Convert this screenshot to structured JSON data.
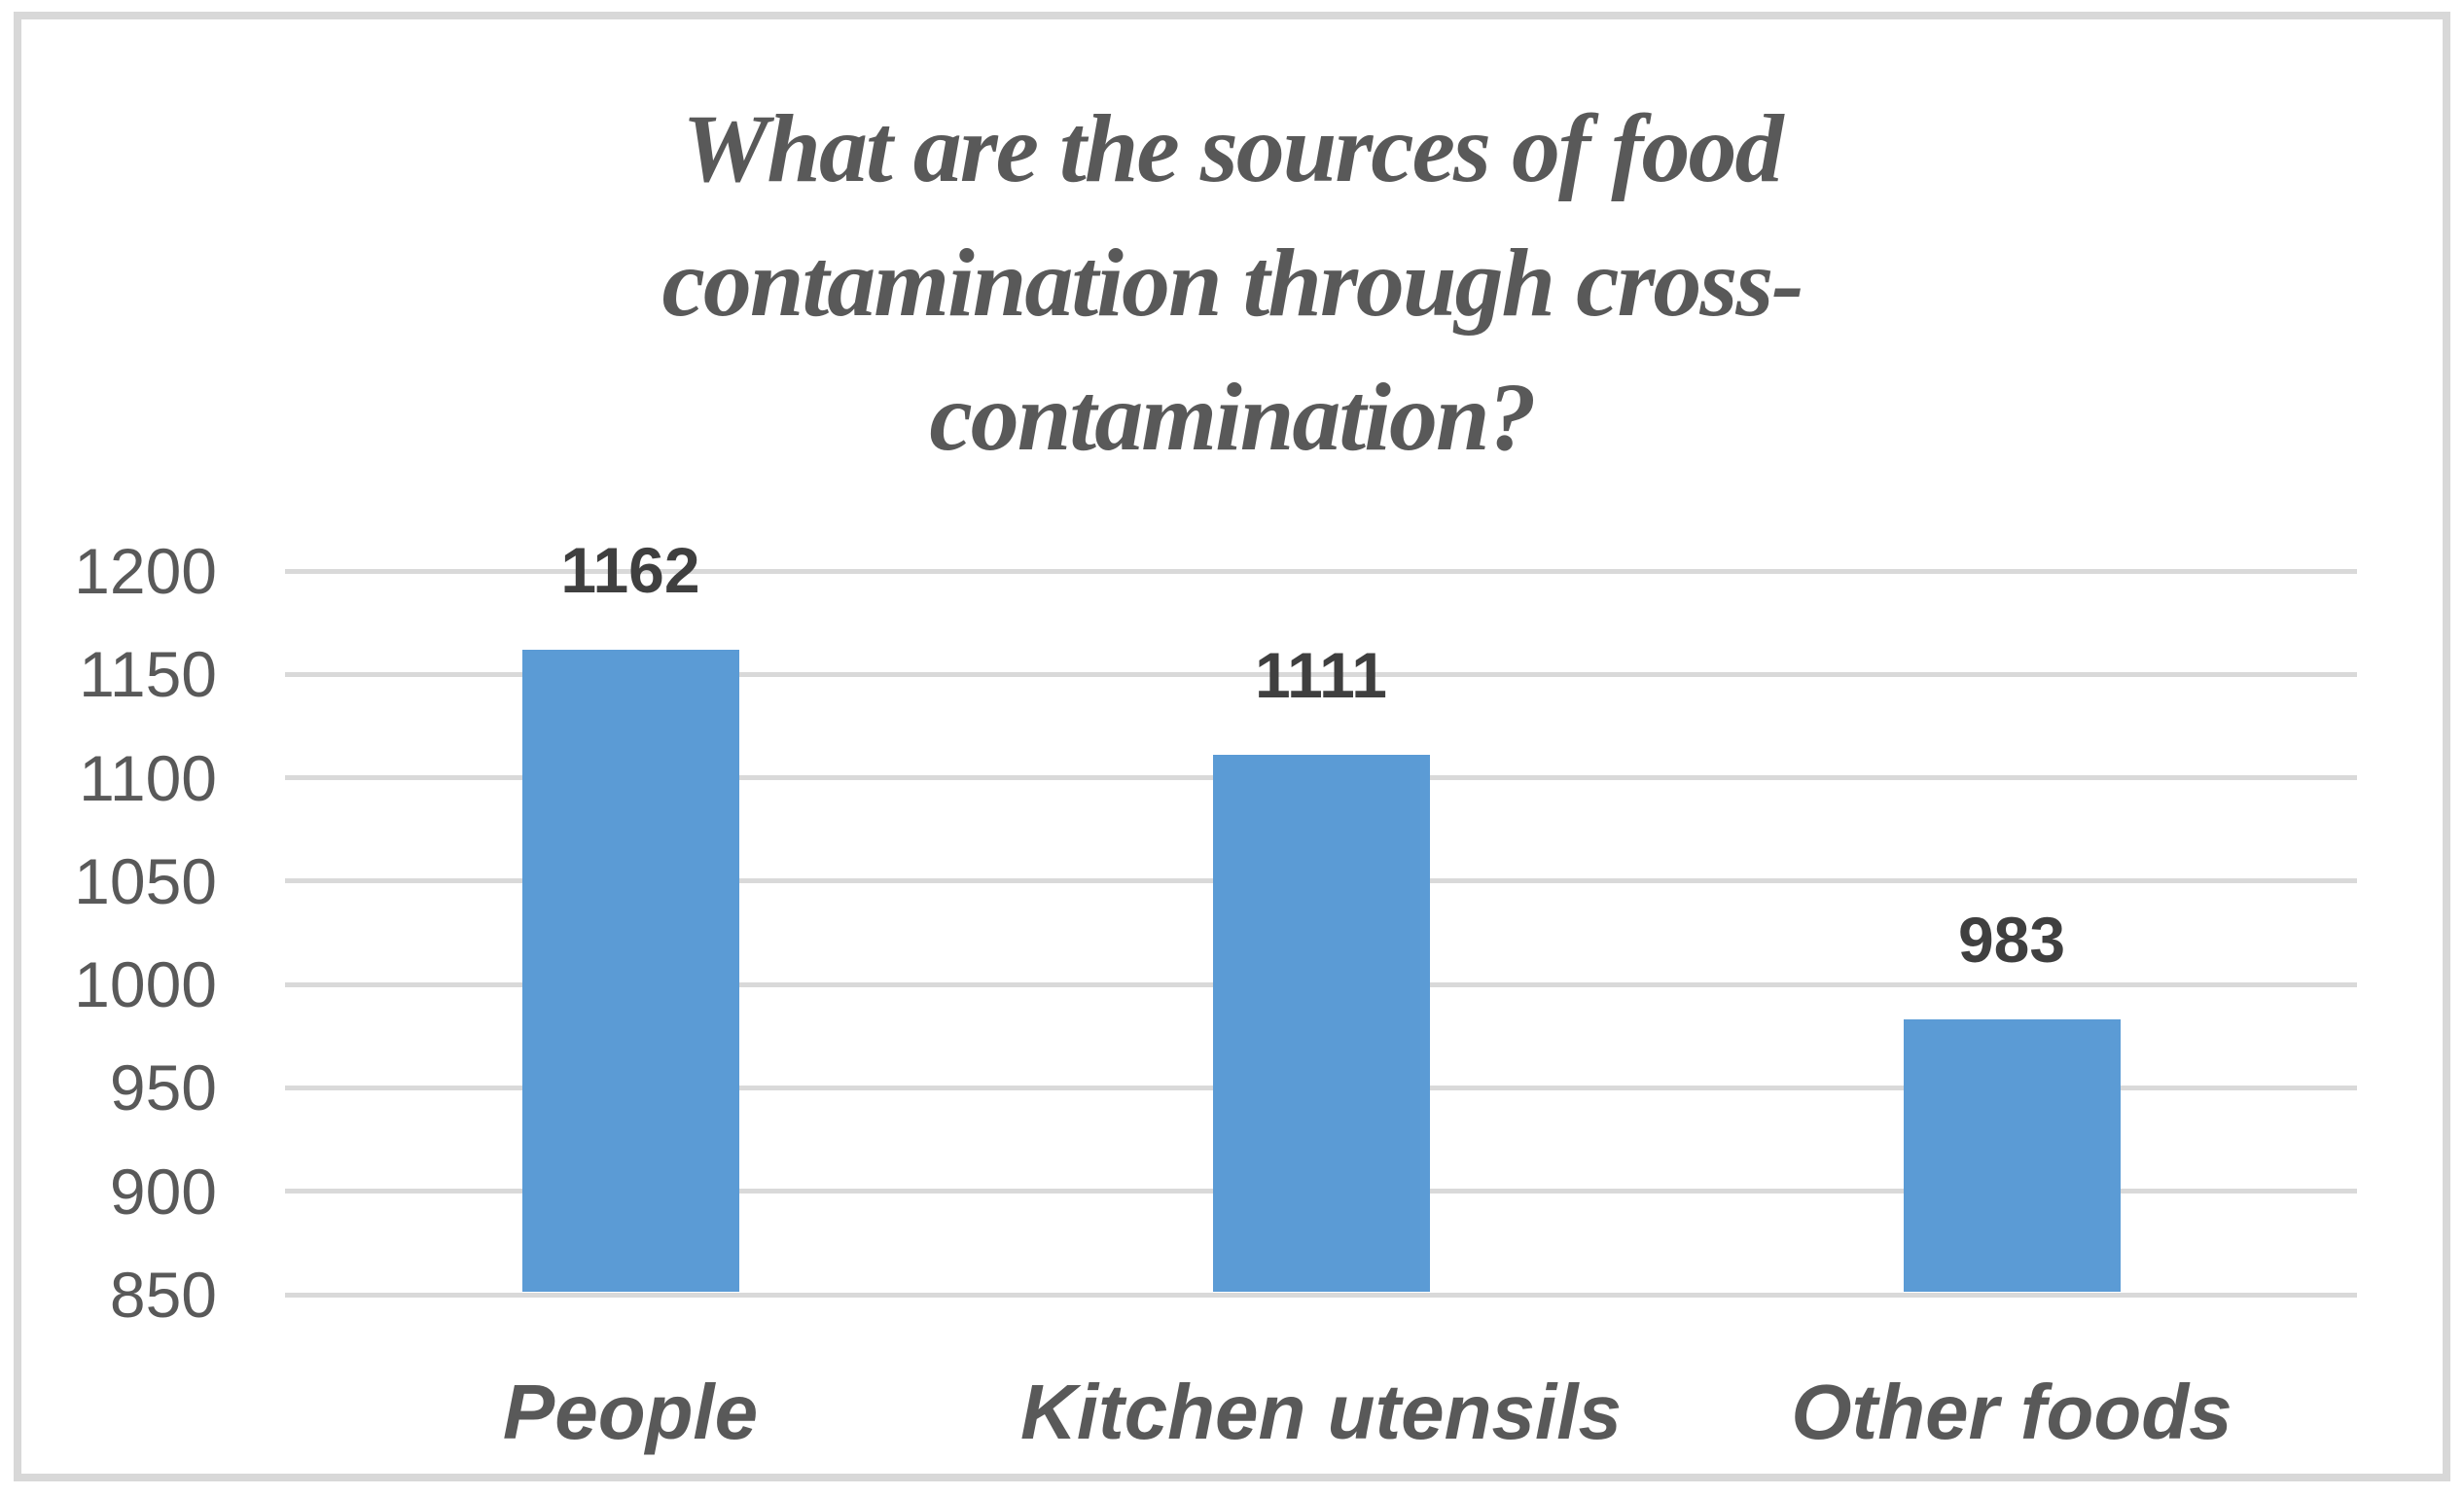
{
  "chart_data": {
    "type": "bar",
    "title": "What are the sources of food contamination through cross-contamination?",
    "title_lines": [
      "What are the sources of food",
      "contamination through cross-",
      "contamination?"
    ],
    "categories": [
      "People",
      "Kitchen utensils",
      "Other foods"
    ],
    "values": [
      1162,
      1111,
      983
    ],
    "data_labels": [
      "1162",
      "1111",
      "983"
    ],
    "y_ticks": [
      1200,
      1150,
      1100,
      1050,
      1000,
      950,
      900,
      850
    ],
    "ylim": [
      850,
      1200
    ],
    "xlabel": "",
    "ylabel": "",
    "grid": "horizontal",
    "legend": "none",
    "colors": {
      "bar": "#5B9BD5",
      "gridline": "#D9D9D9",
      "axis_labels": "#595959",
      "data_labels": "#3F3F3F",
      "title": "#595959",
      "frame_border": "#D8D8D8"
    }
  }
}
